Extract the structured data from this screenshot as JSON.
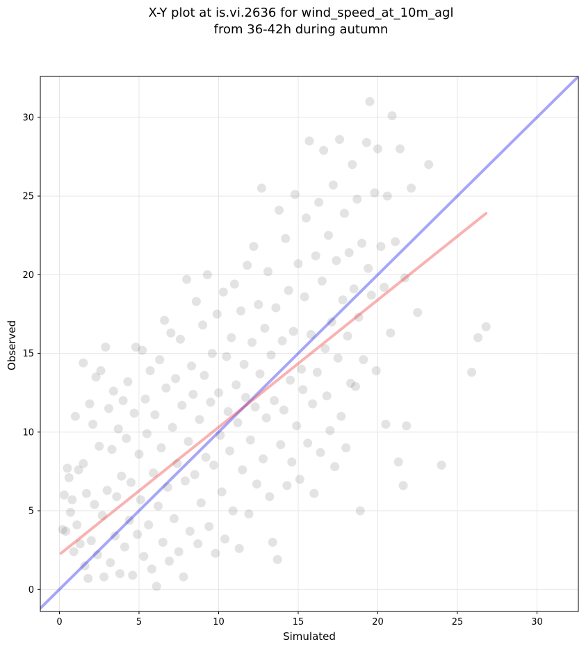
{
  "chart_data": {
    "type": "scatter",
    "title_lines": [
      "X-Y plot at is.vi.2636 for wind_speed_at_10m_agl",
      "from 36-42h during autumn"
    ],
    "xlabel": "Simulated",
    "ylabel": "Observed",
    "xlim": [
      -1.2,
      32.6
    ],
    "ylim": [
      -1.4,
      32.6
    ],
    "xticks": [
      0,
      5,
      10,
      15,
      20,
      25,
      30
    ],
    "yticks": [
      0,
      5,
      10,
      15,
      20,
      25,
      30
    ],
    "grid": true,
    "colors": {
      "points": "#505050",
      "one_to_one": "#0000ee",
      "fit": "#ee2222",
      "grid": "#e6e6e6"
    },
    "reference_line": {
      "name": "1:1",
      "x": [
        -1.2,
        32.6
      ],
      "y": [
        -1.2,
        32.6
      ]
    },
    "fit_line": {
      "x": [
        0.1,
        26.8
      ],
      "y": [
        2.3,
        23.9
      ]
    },
    "points": [
      [
        0.2,
        3.8
      ],
      [
        0.3,
        6.0
      ],
      [
        0.4,
        3.7
      ],
      [
        0.5,
        7.7
      ],
      [
        0.6,
        7.1
      ],
      [
        0.7,
        4.9
      ],
      [
        0.8,
        5.7
      ],
      [
        0.9,
        2.4
      ],
      [
        1.0,
        11.0
      ],
      [
        1.1,
        4.1
      ],
      [
        1.2,
        7.6
      ],
      [
        1.3,
        2.9
      ],
      [
        1.5,
        8.0
      ],
      [
        1.5,
        14.4
      ],
      [
        1.6,
        1.5
      ],
      [
        1.7,
        6.1
      ],
      [
        1.8,
        0.7
      ],
      [
        1.9,
        11.8
      ],
      [
        2.0,
        3.1
      ],
      [
        2.1,
        10.5
      ],
      [
        2.2,
        5.4
      ],
      [
        2.3,
        13.5
      ],
      [
        2.4,
        2.2
      ],
      [
        2.5,
        9.1
      ],
      [
        2.6,
        13.9
      ],
      [
        2.7,
        4.7
      ],
      [
        2.8,
        0.8
      ],
      [
        2.9,
        15.4
      ],
      [
        3.0,
        6.3
      ],
      [
        3.1,
        11.5
      ],
      [
        3.2,
        1.7
      ],
      [
        3.3,
        8.9
      ],
      [
        3.4,
        12.6
      ],
      [
        3.5,
        3.4
      ],
      [
        3.6,
        5.9
      ],
      [
        3.7,
        10.2
      ],
      [
        3.8,
        1.0
      ],
      [
        3.9,
        7.2
      ],
      [
        4.0,
        12.0
      ],
      [
        4.1,
        2.7
      ],
      [
        4.2,
        9.6
      ],
      [
        4.3,
        13.2
      ],
      [
        4.4,
        4.4
      ],
      [
        4.5,
        6.8
      ],
      [
        4.6,
        0.9
      ],
      [
        4.7,
        11.2
      ],
      [
        4.8,
        15.4
      ],
      [
        4.9,
        3.5
      ],
      [
        5.0,
        8.6
      ],
      [
        5.1,
        5.7
      ],
      [
        5.2,
        15.2
      ],
      [
        5.3,
        2.1
      ],
      [
        5.4,
        12.1
      ],
      [
        5.5,
        9.9
      ],
      [
        5.6,
        4.1
      ],
      [
        5.7,
        13.9
      ],
      [
        5.8,
        1.3
      ],
      [
        5.9,
        7.4
      ],
      [
        6.0,
        11.1
      ],
      [
        6.1,
        0.2
      ],
      [
        6.2,
        5.3
      ],
      [
        6.3,
        14.6
      ],
      [
        6.4,
        9.0
      ],
      [
        6.5,
        3.0
      ],
      [
        6.6,
        17.1
      ],
      [
        6.7,
        12.8
      ],
      [
        6.8,
        6.5
      ],
      [
        6.9,
        1.8
      ],
      [
        7.0,
        16.3
      ],
      [
        7.1,
        10.3
      ],
      [
        7.2,
        4.5
      ],
      [
        7.3,
        13.4
      ],
      [
        7.4,
        8.0
      ],
      [
        7.5,
        2.4
      ],
      [
        7.6,
        15.9
      ],
      [
        7.7,
        11.7
      ],
      [
        7.8,
        0.8
      ],
      [
        7.9,
        6.9
      ],
      [
        8.0,
        19.7
      ],
      [
        8.1,
        9.4
      ],
      [
        8.2,
        3.7
      ],
      [
        8.3,
        14.2
      ],
      [
        8.4,
        12.4
      ],
      [
        8.5,
        7.3
      ],
      [
        8.6,
        18.3
      ],
      [
        8.7,
        2.9
      ],
      [
        8.8,
        10.8
      ],
      [
        8.9,
        5.5
      ],
      [
        9.0,
        16.8
      ],
      [
        9.1,
        13.6
      ],
      [
        9.2,
        8.4
      ],
      [
        9.3,
        20.0
      ],
      [
        9.4,
        4.0
      ],
      [
        9.5,
        11.9
      ],
      [
        9.6,
        15.0
      ],
      [
        9.7,
        7.9
      ],
      [
        9.8,
        2.3
      ],
      [
        9.9,
        17.5
      ],
      [
        10.0,
        12.5
      ],
      [
        10.1,
        9.8
      ],
      [
        10.2,
        6.2
      ],
      [
        10.3,
        18.9
      ],
      [
        10.4,
        3.2
      ],
      [
        10.5,
        14.8
      ],
      [
        10.6,
        11.3
      ],
      [
        10.7,
        8.8
      ],
      [
        10.8,
        16.0
      ],
      [
        10.9,
        5.0
      ],
      [
        11.0,
        19.4
      ],
      [
        11.1,
        13.0
      ],
      [
        11.2,
        10.6
      ],
      [
        11.3,
        2.6
      ],
      [
        11.4,
        17.7
      ],
      [
        11.5,
        7.6
      ],
      [
        11.6,
        14.3
      ],
      [
        11.7,
        12.2
      ],
      [
        11.8,
        20.6
      ],
      [
        11.9,
        4.8
      ],
      [
        12.0,
        9.5
      ],
      [
        12.1,
        15.7
      ],
      [
        12.2,
        21.8
      ],
      [
        12.3,
        11.6
      ],
      [
        12.4,
        6.7
      ],
      [
        12.5,
        18.1
      ],
      [
        12.6,
        13.7
      ],
      [
        12.7,
        25.5
      ],
      [
        12.8,
        8.3
      ],
      [
        12.9,
        16.6
      ],
      [
        13.0,
        10.9
      ],
      [
        13.1,
        20.2
      ],
      [
        13.2,
        5.9
      ],
      [
        13.3,
        14.9
      ],
      [
        13.4,
        3.0
      ],
      [
        13.5,
        12.0
      ],
      [
        13.6,
        17.9
      ],
      [
        13.7,
        1.9
      ],
      [
        13.8,
        24.1
      ],
      [
        13.9,
        9.2
      ],
      [
        14.0,
        15.8
      ],
      [
        14.1,
        11.4
      ],
      [
        14.2,
        22.3
      ],
      [
        14.3,
        6.6
      ],
      [
        14.4,
        19.0
      ],
      [
        14.5,
        13.3
      ],
      [
        14.6,
        8.1
      ],
      [
        14.7,
        16.4
      ],
      [
        14.8,
        25.1
      ],
      [
        14.9,
        10.4
      ],
      [
        15.0,
        20.7
      ],
      [
        15.1,
        7.0
      ],
      [
        15.2,
        14.0
      ],
      [
        15.3,
        12.7
      ],
      [
        15.4,
        18.6
      ],
      [
        15.5,
        23.6
      ],
      [
        15.6,
        9.3
      ],
      [
        15.7,
        28.5
      ],
      [
        15.8,
        16.2
      ],
      [
        15.9,
        11.8
      ],
      [
        16.0,
        6.1
      ],
      [
        16.1,
        21.2
      ],
      [
        16.2,
        13.8
      ],
      [
        16.3,
        24.6
      ],
      [
        16.4,
        8.7
      ],
      [
        16.5,
        19.6
      ],
      [
        16.6,
        27.9
      ],
      [
        16.7,
        15.3
      ],
      [
        16.8,
        12.3
      ],
      [
        16.9,
        22.5
      ],
      [
        17.0,
        10.1
      ],
      [
        17.1,
        17.0
      ],
      [
        17.2,
        25.7
      ],
      [
        17.3,
        7.8
      ],
      [
        17.4,
        20.9
      ],
      [
        17.5,
        14.7
      ],
      [
        17.6,
        28.6
      ],
      [
        17.7,
        11.0
      ],
      [
        17.8,
        18.4
      ],
      [
        17.9,
        23.9
      ],
      [
        18.0,
        9.0
      ],
      [
        18.1,
        16.1
      ],
      [
        18.2,
        21.4
      ],
      [
        18.3,
        13.1
      ],
      [
        18.4,
        27.0
      ],
      [
        18.5,
        19.1
      ],
      [
        18.6,
        12.9
      ],
      [
        18.7,
        24.8
      ],
      [
        18.8,
        17.3
      ],
      [
        18.9,
        5.0
      ],
      [
        19.0,
        22.0
      ],
      [
        19.1,
        14.6
      ],
      [
        19.3,
        28.4
      ],
      [
        19.4,
        20.4
      ],
      [
        19.5,
        31.0
      ],
      [
        19.6,
        18.7
      ],
      [
        19.8,
        25.2
      ],
      [
        19.9,
        13.9
      ],
      [
        20.0,
        28.0
      ],
      [
        20.2,
        21.8
      ],
      [
        20.4,
        19.2
      ],
      [
        20.5,
        10.5
      ],
      [
        20.6,
        25.0
      ],
      [
        20.8,
        16.3
      ],
      [
        20.9,
        30.1
      ],
      [
        21.1,
        22.1
      ],
      [
        21.3,
        8.1
      ],
      [
        21.4,
        28.0
      ],
      [
        21.6,
        6.6
      ],
      [
        21.7,
        19.8
      ],
      [
        21.8,
        10.4
      ],
      [
        22.1,
        25.5
      ],
      [
        22.5,
        17.6
      ],
      [
        23.2,
        27.0
      ],
      [
        24.0,
        7.9
      ],
      [
        25.9,
        13.8
      ],
      [
        26.3,
        16.0
      ],
      [
        26.8,
        16.7
      ]
    ]
  }
}
